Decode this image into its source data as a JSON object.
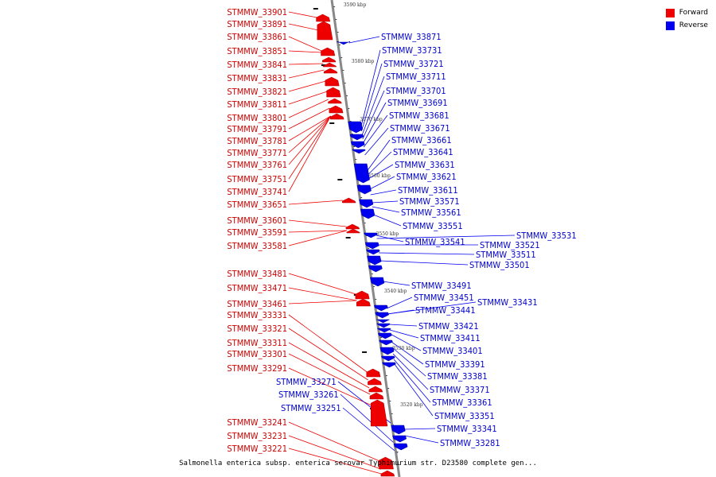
{
  "legend": {
    "forward_label": "Forward",
    "reverse_label": "Reverse",
    "forward_color": "#ee0000",
    "reverse_color": "#0000ee"
  },
  "caption": "Salmonella enterica subsp. enterica serovar Typhimurium str. D23580 complete gen...",
  "ticks": [
    {
      "label": "3590 kbp"
    },
    {
      "label": "3580 kbp"
    },
    {
      "label": "3570 kbp"
    },
    {
      "label": "3560 kbp"
    },
    {
      "label": "3550 kbp"
    },
    {
      "label": "3540 kbp"
    },
    {
      "label": "3530 kbp"
    },
    {
      "label": "3520 kbp"
    }
  ],
  "forward_genes": [
    "STMMW_33901",
    "STMMW_33891",
    "STMMW_33861",
    "STMMW_33851",
    "STMMW_33841",
    "STMMW_33831",
    "STMMW_33821",
    "STMMW_33811",
    "STMMW_33801",
    "STMMW_33791",
    "STMMW_33781",
    "STMMW_33771",
    "STMMW_33761",
    "STMMW_33751",
    "STMMW_33741",
    "STMMW_33651",
    "STMMW_33601",
    "STMMW_33591",
    "STMMW_33581",
    "STMMW_33481",
    "STMMW_33471",
    "STMMW_33461",
    "STMMW_33331",
    "STMMW_33321",
    "STMMW_33311",
    "STMMW_33301",
    "STMMW_33291",
    "STMMW_33241",
    "STMMW_33231",
    "STMMW_33221"
  ],
  "reverse_genes": [
    "STMMW_33871",
    "STMMW_33731",
    "STMMW_33721",
    "STMMW_33711",
    "STMMW_33701",
    "STMMW_33691",
    "STMMW_33681",
    "STMMW_33671",
    "STMMW_33661",
    "STMMW_33641",
    "STMMW_33631",
    "STMMW_33621",
    "STMMW_33611",
    "STMMW_33571",
    "STMMW_33561",
    "STMMW_33551",
    "STMMW_33541",
    "STMMW_33531",
    "STMMW_33521",
    "STMMW_33511",
    "STMMW_33501",
    "STMMW_33491",
    "STMMW_33451",
    "STMMW_33441",
    "STMMW_33431",
    "STMMW_33421",
    "STMMW_33411",
    "STMMW_33401",
    "STMMW_33391",
    "STMMW_33381",
    "STMMW_33371",
    "STMMW_33361",
    "STMMW_33351",
    "STMMW_33341",
    "STMMW_33281",
    "STMMW_33271",
    "STMMW_33261",
    "STMMW_33251"
  ]
}
